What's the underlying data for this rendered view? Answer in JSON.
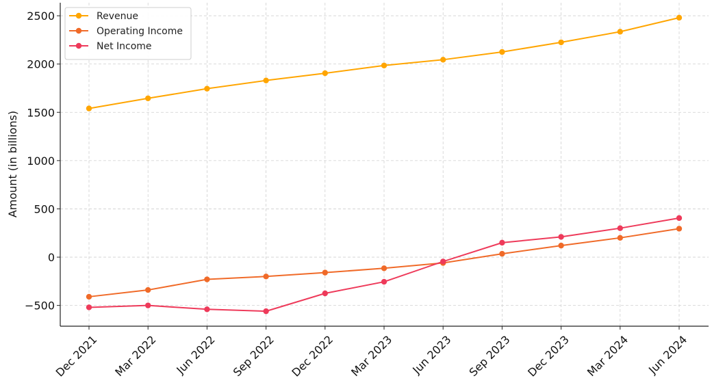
{
  "chart_data": {
    "type": "line",
    "title": "",
    "xlabel": "",
    "ylabel": "Amount (in billions)",
    "categories": [
      "Dec 2021",
      "Mar 2022",
      "Jun 2022",
      "Sep 2022",
      "Dec 2022",
      "Mar 2023",
      "Jun 2023",
      "Sep 2023",
      "Dec 2023",
      "Mar 2024",
      "Jun 2024"
    ],
    "ylim": [
      -715,
      2635
    ],
    "yticks": [
      -500,
      0,
      500,
      1000,
      1500,
      2000,
      2500
    ],
    "ytick_labels": [
      "−500",
      "0",
      "500",
      "1000",
      "1500",
      "2000",
      "2500"
    ],
    "grid": true,
    "legend_position": "top-left",
    "series": [
      {
        "name": "Revenue",
        "color": "#FFA500",
        "values": [
          1540,
          1645,
          1745,
          1830,
          1905,
          1985,
          2045,
          2125,
          2225,
          2335,
          2480
        ]
      },
      {
        "name": "Operating Income",
        "color": "#F06A28",
        "values": [
          -410,
          -340,
          -230,
          -200,
          -160,
          -115,
          -60,
          35,
          120,
          200,
          295
        ]
      },
      {
        "name": "Net Income",
        "color": "#EE3A5A",
        "values": [
          -520,
          -500,
          -540,
          -560,
          -375,
          -255,
          -45,
          150,
          210,
          300,
          405
        ]
      }
    ]
  }
}
